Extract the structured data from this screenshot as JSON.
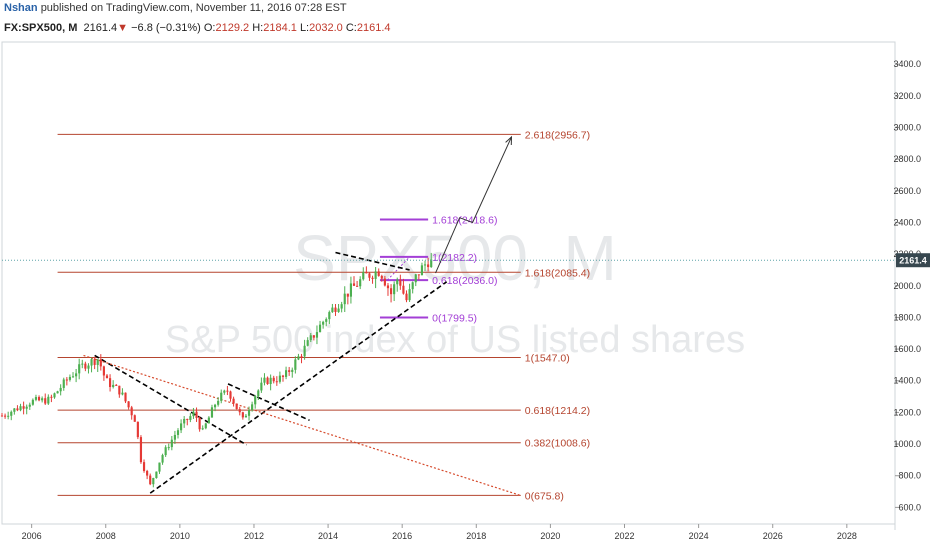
{
  "header": {
    "author": "Nshan",
    "published": "published on TradingView.com, November 11, 2016 07:28 EST",
    "symbol": "FX:SPX500, M",
    "last": "2161.4",
    "arrow": "▼",
    "change": "−6.8 (−0.31%)",
    "o_label": "O:",
    "o_value": "2129.2",
    "h_label": "H:",
    "h_value": "2184.1",
    "l_label": "L:",
    "l_value": "2032.0",
    "c_label": "C:",
    "c_value": "2161.4"
  },
  "watermark": {
    "title": "SPX500, M",
    "subtitle": "S&P 500 index of US listed shares"
  },
  "colors": {
    "fib_large": "#b5452f",
    "fib_small": "#a33fd6",
    "bull": "#4caf50",
    "bear": "#e53935",
    "trend": "#000000",
    "support": "#d64a2c",
    "price_badge": "#37474f"
  },
  "chart_data": {
    "type": "candlestick",
    "x_ticks": [
      "2006",
      "2008",
      "2010",
      "2012",
      "2014",
      "2016",
      "2018",
      "2020",
      "2022",
      "2024",
      "2026",
      "2028"
    ],
    "y_ticks": [
      "600.0",
      "800.0",
      "1000.0",
      "1200.0",
      "1400.0",
      "1600.0",
      "1800.0",
      "2000.0",
      "2200.0",
      "2400.0",
      "2600.0",
      "2800.0",
      "3000.0",
      "3200.0",
      "3400.0"
    ],
    "xlim": [
      2005.2,
      2029.3
    ],
    "ylim": [
      495,
      3540
    ],
    "current_price_label": "2161.4",
    "fib_large": [
      {
        "label": "2.618(2956.7)",
        "price": 2956.7
      },
      {
        "label": "1.618(2085.4)",
        "price": 2085.4
      },
      {
        "label": "1(1547.0)",
        "price": 1547.0
      },
      {
        "label": "0.618(1214.2)",
        "price": 1214.2
      },
      {
        "label": "0.382(1008.6)",
        "price": 1008.6
      },
      {
        "label": "0(675.8)",
        "price": 675.8
      }
    ],
    "fib_small": [
      {
        "label": "1.618(2418.6)",
        "price": 2418.6
      },
      {
        "label": "1(2182.2)",
        "price": 2182.2
      },
      {
        "label": "0.618(2036.0)",
        "price": 2036.0
      },
      {
        "label": "0(1799.5)",
        "price": 1799.5
      }
    ],
    "price_path": [
      [
        2005.2,
        1180
      ],
      [
        2006.0,
        1270
      ],
      [
        2006.5,
        1280
      ],
      [
        2007.0,
        1420
      ],
      [
        2007.4,
        1500
      ],
      [
        2007.8,
        1540
      ],
      [
        2008.0,
        1400
      ],
      [
        2008.4,
        1330
      ],
      [
        2008.8,
        1150
      ],
      [
        2008.95,
        900
      ],
      [
        2009.2,
        740
      ],
      [
        2009.5,
        920
      ],
      [
        2010.0,
        1110
      ],
      [
        2010.4,
        1200
      ],
      [
        2010.6,
        1070
      ],
      [
        2011.0,
        1280
      ],
      [
        2011.3,
        1340
      ],
      [
        2011.7,
        1150
      ],
      [
        2012.0,
        1300
      ],
      [
        2012.3,
        1400
      ],
      [
        2012.8,
        1420
      ],
      [
        2013.0,
        1480
      ],
      [
        2013.5,
        1650
      ],
      [
        2014.0,
        1820
      ],
      [
        2014.5,
        1950
      ],
      [
        2015.0,
        2060
      ],
      [
        2015.4,
        2100
      ],
      [
        2015.7,
        1950
      ],
      [
        2015.9,
        2060
      ],
      [
        2016.1,
        1900
      ],
      [
        2016.4,
        2070
      ],
      [
        2016.7,
        2160
      ],
      [
        2016.85,
        2140
      ]
    ]
  }
}
